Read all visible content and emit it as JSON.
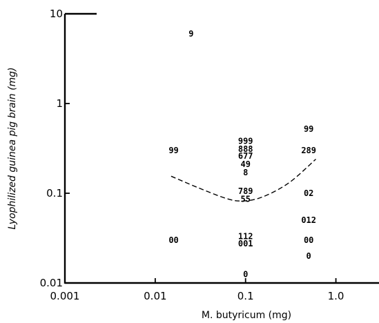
{
  "chart_data": {
    "type": "scatter",
    "title": "",
    "xlabel": "M. butyricum (mg)",
    "ylabel": "Lyophilized guinea pig brain (mg)",
    "x_scale": "log",
    "y_scale": "log",
    "xlim": [
      0.001,
      3
    ],
    "ylim": [
      0.01,
      10
    ],
    "x_ticks": [
      0.001,
      0.01,
      0.1,
      1.0
    ],
    "x_tick_labels": [
      "0.001",
      "0.01",
      "0.1",
      "1.0"
    ],
    "y_ticks": [
      0.01,
      0.1,
      1,
      10
    ],
    "y_tick_labels": [
      "0.01",
      "0.1",
      "1",
      "10"
    ],
    "grid": false,
    "point_labels": [
      {
        "x": 0.025,
        "y": 6.0,
        "text": "9"
      },
      {
        "x": 0.016,
        "y": 0.3,
        "text": "99"
      },
      {
        "x": 0.016,
        "y": 0.03,
        "text": "00"
      },
      {
        "x": 0.1,
        "y": 0.38,
        "text": "999"
      },
      {
        "x": 0.1,
        "y": 0.31,
        "text": "888"
      },
      {
        "x": 0.1,
        "y": 0.26,
        "text": "677"
      },
      {
        "x": 0.1,
        "y": 0.21,
        "text": "49"
      },
      {
        "x": 0.1,
        "y": 0.17,
        "text": "8"
      },
      {
        "x": 0.1,
        "y": 0.105,
        "text": "789"
      },
      {
        "x": 0.1,
        "y": 0.086,
        "text": "55"
      },
      {
        "x": 0.1,
        "y": 0.033,
        "text": "112"
      },
      {
        "x": 0.1,
        "y": 0.0275,
        "text": "001"
      },
      {
        "x": 0.1,
        "y": 0.0125,
        "text": "0"
      },
      {
        "x": 0.5,
        "y": 0.52,
        "text": "99"
      },
      {
        "x": 0.5,
        "y": 0.3,
        "text": "289"
      },
      {
        "x": 0.5,
        "y": 0.1,
        "text": "02"
      },
      {
        "x": 0.5,
        "y": 0.05,
        "text": "012"
      },
      {
        "x": 0.5,
        "y": 0.03,
        "text": "00"
      },
      {
        "x": 0.5,
        "y": 0.02,
        "text": "0"
      }
    ],
    "curve": {
      "style": "dashed",
      "points": [
        [
          0.015,
          0.155
        ],
        [
          0.03,
          0.115
        ],
        [
          0.06,
          0.088
        ],
        [
          0.09,
          0.082
        ],
        [
          0.15,
          0.09
        ],
        [
          0.3,
          0.13
        ],
        [
          0.6,
          0.24
        ]
      ]
    }
  }
}
